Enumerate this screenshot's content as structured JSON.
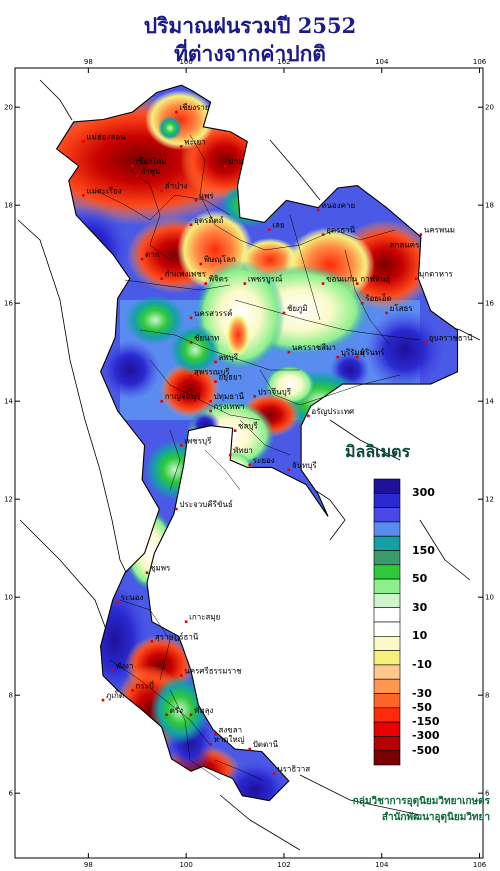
{
  "title": {
    "line1": "ปริมาณฝนรวมปี  2552",
    "line2": "ที่ต่างจากค่าปกติ"
  },
  "axes": {
    "lon_ticks": [
      "98",
      "100",
      "102",
      "104",
      "106"
    ],
    "lat_ticks": [
      "20",
      "18",
      "16",
      "14",
      "12",
      "10",
      "8",
      "6"
    ]
  },
  "legend": {
    "unit": "มิลลิเมตร",
    "bins": [
      {
        "color": "#1f0f9a"
      },
      {
        "color": "#2a2ad0"
      },
      {
        "color": "#4848e8"
      },
      {
        "color": "#5a8cf0"
      },
      {
        "color": "#14a0a8"
      },
      {
        "color": "#3a9a6a"
      },
      {
        "color": "#2ec83a"
      },
      {
        "color": "#8cf08c"
      },
      {
        "color": "#cdf5cd"
      },
      {
        "color": "#ffffff"
      },
      {
        "color": "#ffffff"
      },
      {
        "color": "#fafac8"
      },
      {
        "color": "#f5f07a"
      },
      {
        "color": "#ffc88c"
      },
      {
        "color": "#ff9650"
      },
      {
        "color": "#ff6428"
      },
      {
        "color": "#ff2a0a"
      },
      {
        "color": "#e60000"
      },
      {
        "color": "#b40000"
      },
      {
        "color": "#780000"
      }
    ],
    "labels": [
      "300",
      "150",
      "50",
      "30",
      "10",
      "-10",
      "-30",
      "-50",
      "-150",
      "-300",
      "-500"
    ]
  },
  "places": [
    {
      "name": "เชียงราย",
      "lon": 99.8,
      "lat": 19.9
    },
    {
      "name": "แม่ฮ่องสอน",
      "lon": 97.9,
      "lat": 19.3
    },
    {
      "name": "พะเยา",
      "lon": 99.9,
      "lat": 19.2
    },
    {
      "name": "น่าน",
      "lon": 100.8,
      "lat": 18.8
    },
    {
      "name": "เชียงใหม่",
      "lon": 98.9,
      "lat": 18.8
    },
    {
      "name": "ลำพูน",
      "lon": 99.0,
      "lat": 18.6
    },
    {
      "name": "ลำปาง",
      "lon": 99.5,
      "lat": 18.3
    },
    {
      "name": "แพร่",
      "lon": 100.2,
      "lat": 18.1
    },
    {
      "name": "แม่สะเรียง",
      "lon": 97.9,
      "lat": 18.2
    },
    {
      "name": "อุตรดิตถ์",
      "lon": 100.1,
      "lat": 17.6
    },
    {
      "name": "หนองคาย",
      "lon": 102.7,
      "lat": 17.9
    },
    {
      "name": "อุดรธานี",
      "lon": 102.8,
      "lat": 17.4
    },
    {
      "name": "นครพนม",
      "lon": 104.8,
      "lat": 17.4
    },
    {
      "name": "สกลนคร",
      "lon": 104.1,
      "lat": 17.1
    },
    {
      "name": "เลย",
      "lon": 101.7,
      "lat": 17.5
    },
    {
      "name": "ตาก",
      "lon": 99.1,
      "lat": 16.9
    },
    {
      "name": "พิษณุโลก",
      "lon": 100.3,
      "lat": 16.8
    },
    {
      "name": "มุกดาหาร",
      "lon": 104.7,
      "lat": 16.5
    },
    {
      "name": "กำแพงเพชร",
      "lon": 99.5,
      "lat": 16.5
    },
    {
      "name": "พิจิตร",
      "lon": 100.4,
      "lat": 16.4
    },
    {
      "name": "เพชรบูรณ์",
      "lon": 101.2,
      "lat": 16.4
    },
    {
      "name": "ขอนแก่น",
      "lon": 102.8,
      "lat": 16.4
    },
    {
      "name": "กาฬสินธุ์",
      "lon": 103.5,
      "lat": 16.4
    },
    {
      "name": "นครสวรรค์",
      "lon": 100.1,
      "lat": 15.7
    },
    {
      "name": "ชัยภูมิ",
      "lon": 102.0,
      "lat": 15.8
    },
    {
      "name": "อุบลราชธานี",
      "lon": 104.9,
      "lat": 15.2
    },
    {
      "name": "ลพบุรี",
      "lon": 100.6,
      "lat": 14.8
    },
    {
      "name": "นครราชสีมา",
      "lon": 102.1,
      "lat": 15.0
    },
    {
      "name": "ชัยนาท",
      "lon": 100.1,
      "lat": 15.2
    },
    {
      "name": "ร้อยเอ็ด",
      "lon": 103.6,
      "lat": 16.0
    },
    {
      "name": "ยโสธร",
      "lon": 104.1,
      "lat": 15.8
    },
    {
      "name": "สุรินทร์",
      "lon": 103.5,
      "lat": 14.9
    },
    {
      "name": "บุรีรัมย์",
      "lon": 103.1,
      "lat": 14.9
    },
    {
      "name": "สุพรรณบุรี",
      "lon": 100.1,
      "lat": 14.5
    },
    {
      "name": "อยุธยา",
      "lon": 100.6,
      "lat": 14.4
    },
    {
      "name": "กาญจนบุรี",
      "lon": 99.5,
      "lat": 14.0
    },
    {
      "name": "ปทุมธานี",
      "lon": 100.5,
      "lat": 14.0
    },
    {
      "name": "ปราจีนบุรี",
      "lon": 101.4,
      "lat": 14.1
    },
    {
      "name": "อรัญประเทศ",
      "lon": 102.5,
      "lat": 13.7
    },
    {
      "name": "กรุงเทพฯ",
      "lon": 100.5,
      "lat": 13.8
    },
    {
      "name": "ชลบุรี",
      "lon": 101.0,
      "lat": 13.4
    },
    {
      "name": "เพชรบุรี",
      "lon": 99.9,
      "lat": 13.1
    },
    {
      "name": "พัทยา",
      "lon": 100.9,
      "lat": 12.9
    },
    {
      "name": "ระยอง",
      "lon": 101.3,
      "lat": 12.7
    },
    {
      "name": "จันทบุรี",
      "lon": 102.1,
      "lat": 12.6
    },
    {
      "name": "ประจวบคีรีขันธ์",
      "lon": 99.8,
      "lat": 11.8
    },
    {
      "name": "ชุมพร",
      "lon": 99.2,
      "lat": 10.5
    },
    {
      "name": "ระนอง",
      "lon": 98.6,
      "lat": 9.9
    },
    {
      "name": "เกาะสมุย",
      "lon": 100.0,
      "lat": 9.5
    },
    {
      "name": "สุราษฎร์ธานี",
      "lon": 99.3,
      "lat": 9.1
    },
    {
      "name": "นครศรีธรรมราช",
      "lon": 99.9,
      "lat": 8.4
    },
    {
      "name": "พังงา",
      "lon": 98.5,
      "lat": 8.5
    },
    {
      "name": "ภูเก็ต",
      "lon": 98.3,
      "lat": 7.9
    },
    {
      "name": "กระบี่",
      "lon": 98.9,
      "lat": 8.1
    },
    {
      "name": "ตรัง",
      "lon": 99.6,
      "lat": 7.6
    },
    {
      "name": "พัทลุง",
      "lon": 100.1,
      "lat": 7.6
    },
    {
      "name": "สงขลา",
      "lon": 100.6,
      "lat": 7.2
    },
    {
      "name": "หาดใหญ่",
      "lon": 100.5,
      "lat": 7.0
    },
    {
      "name": "ปัตตานี",
      "lon": 101.3,
      "lat": 6.9
    },
    {
      "name": "นราธิวาส",
      "lon": 101.8,
      "lat": 6.4
    }
  ],
  "credits": {
    "line1": "กลุ่มวิชาการอุตุนิยมวิทยาเกษตร",
    "line2": "สำนักพัฒนาอุตุนิยมวิทยา"
  }
}
